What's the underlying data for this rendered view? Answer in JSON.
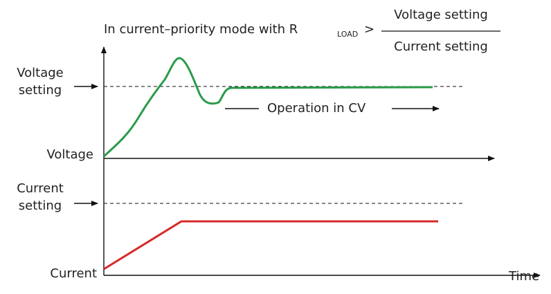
{
  "title": {
    "prefix": "In current–priority mode with R",
    "subscript": "LOAD",
    "operator": ">",
    "numerator": "Voltage setting",
    "denominator": "Current setting"
  },
  "labels": {
    "voltage_setting": [
      "Voltage",
      "setting"
    ],
    "voltage": "Voltage",
    "operation": "Operation in CV",
    "current_setting": [
      "Current",
      "setting"
    ],
    "current": "Current",
    "time": "Time"
  }
}
